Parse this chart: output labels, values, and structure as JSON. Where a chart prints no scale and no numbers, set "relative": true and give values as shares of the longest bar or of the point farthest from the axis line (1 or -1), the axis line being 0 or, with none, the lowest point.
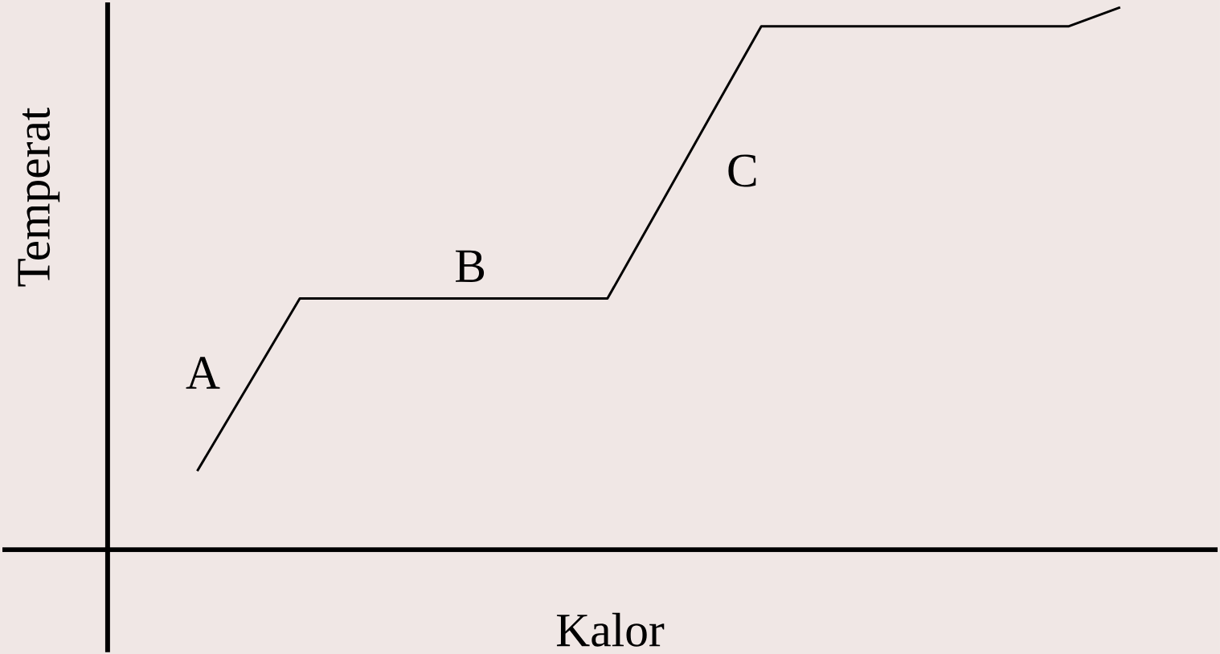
{
  "chart_data": {
    "type": "line",
    "relative": true,
    "xlabel": "Kalor",
    "ylabel": "Temperat",
    "categories": [
      null,
      null,
      null,
      null,
      null,
      null,
      null,
      null,
      null,
      null,
      null,
      null,
      null,
      null,
      null,
      null,
      null,
      null,
      null
    ],
    "values": [
      0.145,
      0.304,
      0.463,
      0.463,
      0.463,
      0.463,
      0.463,
      0.463,
      0.463,
      0.63,
      0.798,
      0.965,
      0.965,
      0.965,
      0.965,
      0.965,
      0.965,
      0.965,
      1.0
    ],
    "color": "#000000",
    "marker": "none",
    "line_style": "solid",
    "tick_labels": false,
    "annotations": [
      "A",
      "B",
      "C"
    ]
  }
}
